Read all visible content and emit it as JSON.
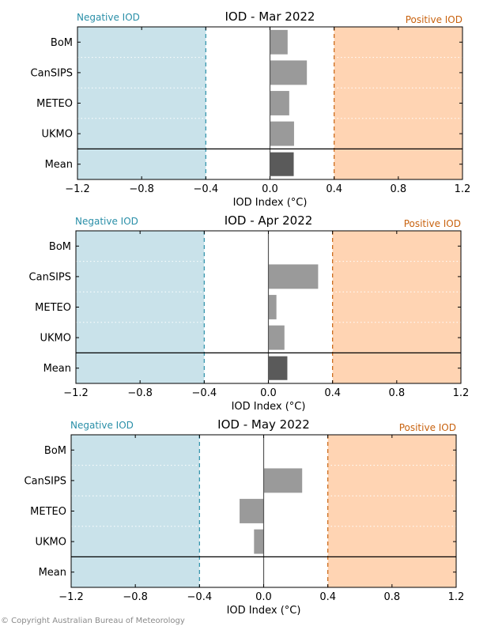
{
  "copyright": "© Copyright Australian Bureau of Meteorology",
  "colors": {
    "negative_fill": "#c9e2ea",
    "positive_fill": "#ffd4b3",
    "negative_text": "#2a8fa8",
    "positive_text": "#c8620e",
    "model_bar": "#9a9a9a",
    "mean_bar": "#5a5a5a"
  },
  "chart_data": [
    {
      "type": "bar",
      "orientation": "horizontal",
      "title": "IOD - Mar 2022",
      "xlabel": "IOD Index (°C)",
      "xlim": [
        -1.2,
        1.2
      ],
      "xticks": [
        "−1.2",
        "−0.8",
        "−0.4",
        "0.0",
        "0.4",
        "0.8",
        "1.2"
      ],
      "thresholds": [
        -0.4,
        0.4
      ],
      "negative_label": "Negative IOD",
      "positive_label": "Positive IOD",
      "categories": [
        "BoM",
        "CanSIPS",
        "METEO",
        "UKMO",
        "Mean"
      ],
      "values": [
        0.11,
        0.23,
        0.12,
        0.15,
        0.15
      ]
    },
    {
      "type": "bar",
      "orientation": "horizontal",
      "title": "IOD - Apr 2022",
      "xlabel": "IOD Index (°C)",
      "xlim": [
        -1.2,
        1.2
      ],
      "xticks": [
        "−1.2",
        "−0.8",
        "−0.4",
        "0.0",
        "0.4",
        "0.8",
        "1.2"
      ],
      "thresholds": [
        -0.4,
        0.4
      ],
      "negative_label": "Negative IOD",
      "positive_label": "Positive IOD",
      "categories": [
        "BoM",
        "CanSIPS",
        "METEO",
        "UKMO",
        "Mean"
      ],
      "values": [
        0.0,
        0.31,
        0.05,
        0.1,
        0.12
      ]
    },
    {
      "type": "bar",
      "orientation": "horizontal",
      "title": "IOD - May 2022",
      "xlabel": "IOD Index (°C)",
      "xlim": [
        -1.2,
        1.2
      ],
      "xticks": [
        "−1.2",
        "−0.8",
        "−0.4",
        "0.0",
        "0.4",
        "0.8",
        "1.2"
      ],
      "thresholds": [
        -0.4,
        0.4
      ],
      "negative_label": "Negative IOD",
      "positive_label": "Positive IOD",
      "categories": [
        "BoM",
        "CanSIPS",
        "METEO",
        "UKMO",
        "Mean"
      ],
      "values": [
        0.0,
        0.24,
        -0.15,
        -0.06,
        0.0
      ]
    }
  ]
}
